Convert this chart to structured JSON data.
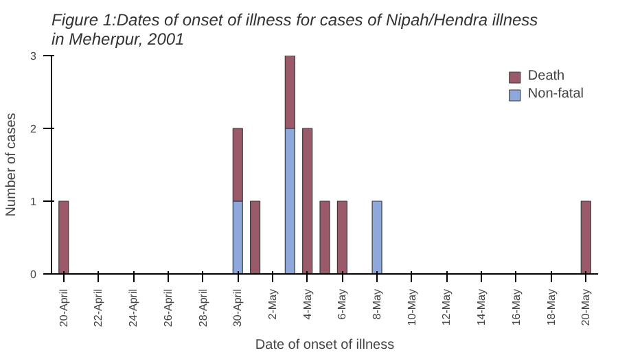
{
  "chart_data": {
    "type": "bar",
    "stacked": true,
    "title": "Figure 1:Dates of onset of illness for cases of Nipah/Hendra illness in Meherpur, 2001",
    "xlabel": "Date of onset of illness",
    "ylabel": "Number of cases",
    "categories": [
      "20-April",
      null,
      "22-April",
      null,
      "24-April",
      null,
      "26-April",
      null,
      "28-April",
      null,
      "30-April",
      null,
      "2-May",
      null,
      "4-May",
      null,
      "6-May",
      null,
      "8-May",
      null,
      "10-May",
      null,
      "12-May",
      null,
      "14-May",
      null,
      "16-May",
      null,
      "18-May",
      null,
      "20-May"
    ],
    "series": [
      {
        "name": "Non-fatal",
        "color": "#8fa8dc",
        "values": [
          0,
          0,
          0,
          0,
          0,
          0,
          0,
          0,
          0,
          0,
          1,
          0,
          0,
          2,
          0,
          0,
          0,
          0,
          1,
          0,
          0,
          0,
          0,
          0,
          0,
          0,
          0,
          0,
          0,
          0,
          0
        ]
      },
      {
        "name": "Death",
        "color": "#9b5a6a",
        "values": [
          1,
          0,
          0,
          0,
          0,
          0,
          0,
          0,
          0,
          0,
          1,
          1,
          0,
          1,
          2,
          1,
          1,
          0,
          0,
          0,
          0,
          0,
          0,
          0,
          0,
          0,
          0,
          0,
          0,
          0,
          1
        ]
      }
    ],
    "ylim": [
      0,
      3
    ],
    "yticks": [
      0,
      1,
      2,
      3
    ],
    "grid": false,
    "legend": "top right"
  }
}
